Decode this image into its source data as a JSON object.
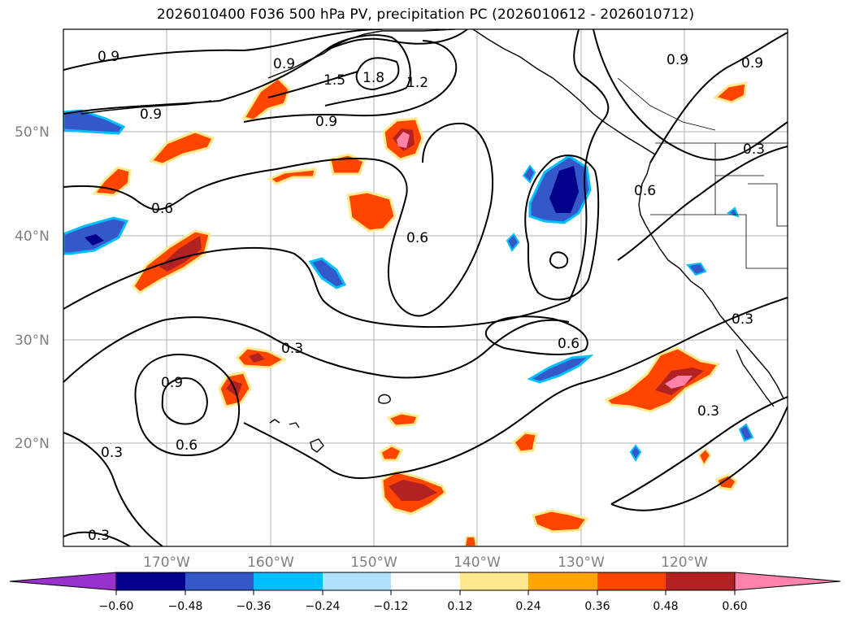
{
  "title": "2026010400 F036 500 hPa PV, precipitation PC (2026010612 - 2026010712)",
  "latitude_labels": [
    "50°N",
    "40°N",
    "30°N",
    "20°N"
  ],
  "longitude_labels": [
    "170°W",
    "160°W",
    "150°W",
    "140°W",
    "130°W",
    "120°W"
  ],
  "contour_labels": [
    "0.9",
    "0.9",
    "0.9",
    "0.9",
    "1.5",
    "1.8",
    "1.2",
    "0.9",
    "0.9",
    "0.3",
    "0.6",
    "0.6",
    "0.6",
    "0.3",
    "0.9",
    "0.6",
    "0.6",
    "0.3",
    "0.3",
    "0.3",
    "0.3"
  ],
  "colorbar": {
    "ticks": [
      "−0.60",
      "−0.48",
      "−0.36",
      "−0.24",
      "−0.12",
      "0.12",
      "0.24",
      "0.36",
      "0.48",
      "0.60"
    ],
    "colors": [
      "#9932cc",
      "#00008b",
      "#3558c9",
      "#00bfff",
      "#b0e2ff",
      "#ffffff",
      "#ffe98c",
      "#ffa500",
      "#ff4500",
      "#b22222",
      "#ff82ab"
    ]
  },
  "colors": {
    "contour": "#000000",
    "grid": "#b0b0b0",
    "axis_label": "#7f7f7f"
  }
}
